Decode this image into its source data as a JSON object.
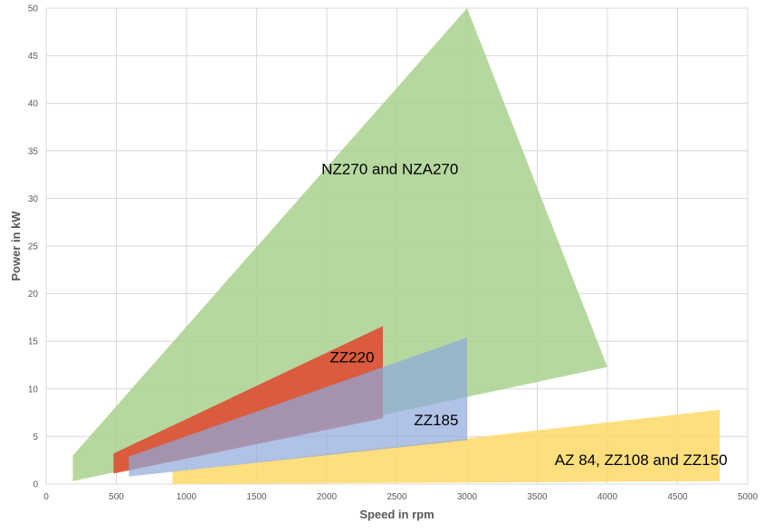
{
  "chart_data": {
    "type": "area",
    "xlabel": "Speed in rpm",
    "ylabel": "Power in kW",
    "xlim": [
      0,
      5000
    ],
    "ylim": [
      0,
      50
    ],
    "x_ticks": [
      0,
      500,
      1000,
      1500,
      2000,
      2500,
      3000,
      3500,
      4000,
      4500,
      5000
    ],
    "y_ticks": [
      0,
      5,
      10,
      15,
      20,
      25,
      30,
      35,
      40,
      45,
      50
    ],
    "grid": true,
    "series": [
      {
        "name": "NZ270 and NZA270",
        "color": "#a9d18e",
        "opacity": 0.85,
        "label_at": [
          2450,
          33
        ],
        "polygon": [
          [
            190,
            0.3
          ],
          [
            190,
            3.0
          ],
          [
            3000,
            50
          ],
          [
            4000,
            12.3
          ]
        ]
      },
      {
        "name": "AZ 84, ZZ108 and ZZ150",
        "color": "#ffd966",
        "opacity": 0.85,
        "label_at": [
          4240,
          2.4
        ],
        "polygon": [
          [
            900,
            0
          ],
          [
            900,
            1.3
          ],
          [
            4800,
            7.8
          ],
          [
            4800,
            0.3
          ]
        ]
      },
      {
        "name": "ZZ220",
        "color": "#e0452d",
        "opacity": 0.85,
        "label_at": [
          2180,
          13.2
        ],
        "polygon": [
          [
            480,
            1.1
          ],
          [
            480,
            3.2
          ],
          [
            2400,
            16.6
          ],
          [
            2400,
            6.9
          ]
        ]
      },
      {
        "name": "ZZ185",
        "color": "#8ea9db",
        "opacity": 0.7,
        "label_at": [
          2780,
          6.6
        ],
        "polygon": [
          [
            590,
            0.8
          ],
          [
            590,
            2.9
          ],
          [
            3000,
            15.4
          ],
          [
            3000,
            4.6
          ]
        ]
      }
    ]
  }
}
